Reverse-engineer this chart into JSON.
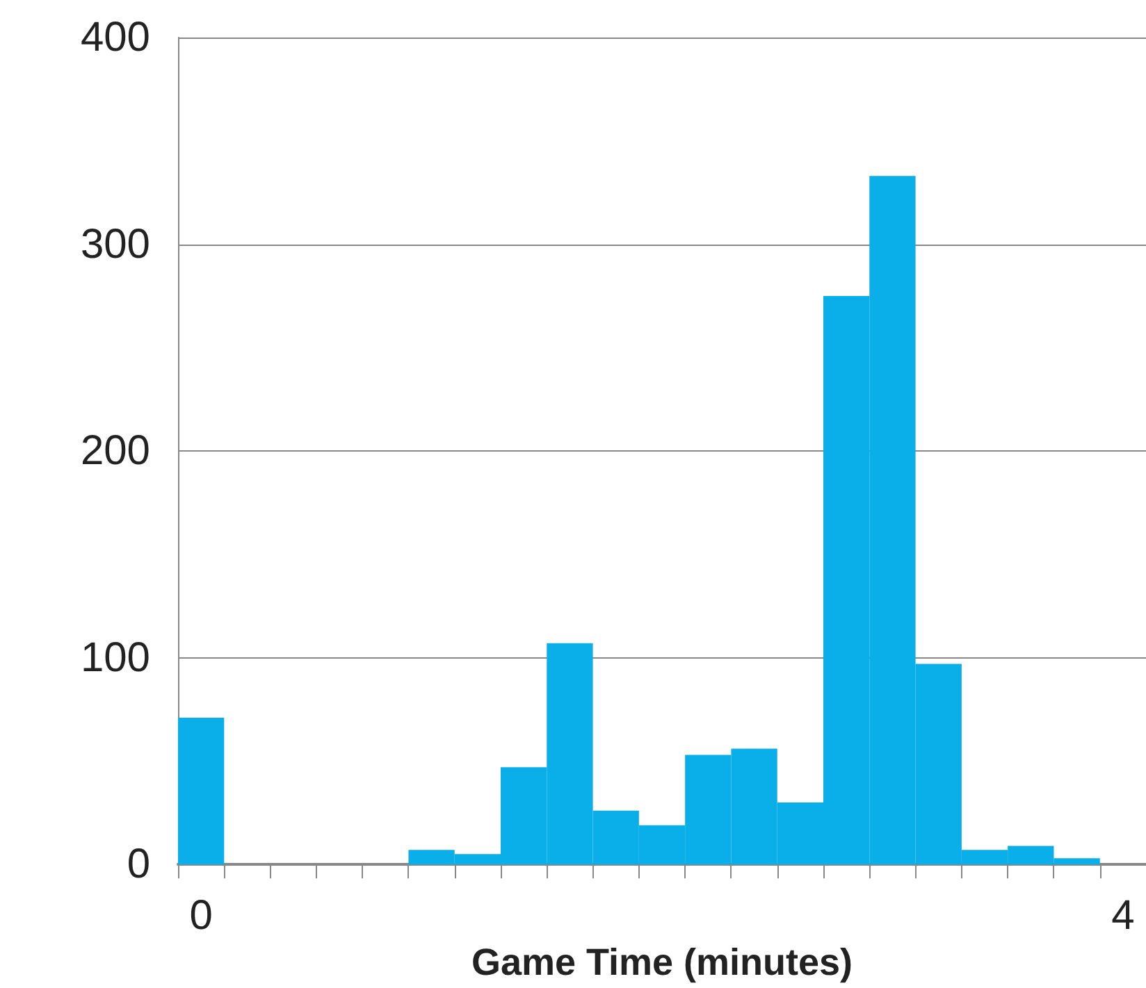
{
  "chart_data": {
    "type": "bar",
    "xlabel": "Game Time (minutes)",
    "categories": [
      "0",
      null,
      null,
      null,
      null,
      null,
      null,
      null,
      null,
      null,
      null,
      null,
      null,
      null,
      null,
      null,
      null,
      null,
      null,
      null,
      "4"
    ],
    "values": [
      71,
      0,
      0,
      0,
      0,
      7,
      5,
      47,
      107,
      26,
      19,
      53,
      56,
      30,
      275,
      333,
      97,
      7,
      9,
      3,
      0
    ],
    "color": "#0aaee8",
    "ylim": [
      0,
      400
    ],
    "yticks": [
      0,
      100,
      200,
      300,
      400
    ],
    "grid": "y"
  }
}
